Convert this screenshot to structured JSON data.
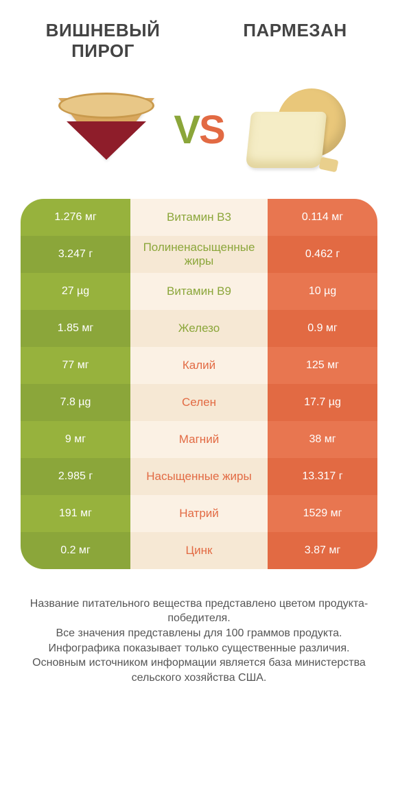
{
  "colors": {
    "left_primary": "#97b23d",
    "left_alt": "#8ba63a",
    "right_primary": "#e87650",
    "right_alt": "#e26a43",
    "mid_bg_a": "#fbf1e4",
    "mid_bg_b": "#f6e8d4",
    "mid_text_left": "#8ba63a",
    "mid_text_right": "#e26a43",
    "title_color": "#444444",
    "footer_color": "#555555"
  },
  "header": {
    "left_title": "ВИШНЕВЫЙ ПИРОГ",
    "right_title": "ПАРМЕЗАН",
    "vs_v": "V",
    "vs_s": "S"
  },
  "rows": [
    {
      "left": "1.276 мг",
      "label": "Витамин B3",
      "right": "0.114 мг",
      "winner": "left"
    },
    {
      "left": "3.247 г",
      "label": "Полиненасыщенные жиры",
      "right": "0.462 г",
      "winner": "left"
    },
    {
      "left": "27 µg",
      "label": "Витамин B9",
      "right": "10 µg",
      "winner": "left"
    },
    {
      "left": "1.85 мг",
      "label": "Железо",
      "right": "0.9 мг",
      "winner": "left"
    },
    {
      "left": "77 мг",
      "label": "Калий",
      "right": "125 мг",
      "winner": "right"
    },
    {
      "left": "7.8 µg",
      "label": "Селен",
      "right": "17.7 µg",
      "winner": "right"
    },
    {
      "left": "9 мг",
      "label": "Магний",
      "right": "38 мг",
      "winner": "right"
    },
    {
      "left": "2.985 г",
      "label": "Насыщенные жиры",
      "right": "13.317 г",
      "winner": "right"
    },
    {
      "left": "191 мг",
      "label": "Натрий",
      "right": "1529 мг",
      "winner": "right"
    },
    {
      "left": "0.2 мг",
      "label": "Цинк",
      "right": "3.87 мг",
      "winner": "right"
    }
  ],
  "footer": {
    "line1": "Название питательного вещества представлено цветом продукта-победителя.",
    "line2": "Все значения представлены для 100 граммов продукта.",
    "line3": "Инфографика показывает только существенные различия.",
    "line4": "Основным источником информации является база министерства сельского хозяйства США."
  }
}
